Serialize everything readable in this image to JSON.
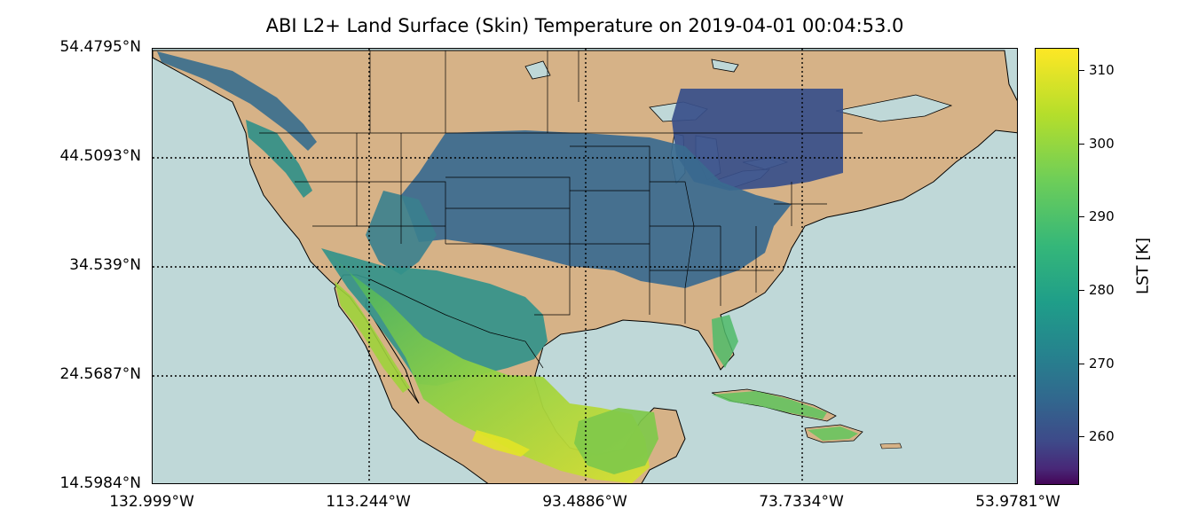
{
  "title": "ABI L2+ Land Surface (Skin) Temperature on 2019-04-01 00:04:53.0",
  "map": {
    "lat_labels": [
      "54.4795°N",
      "44.5093°N",
      "34.539°N",
      "24.5687°N",
      "14.5984°N"
    ],
    "lon_labels": [
      "132.999°W",
      "113.244°W",
      "93.4886°W",
      "73.7334°W",
      "53.9781°W"
    ],
    "colors": {
      "ocean": "#bfd8d8",
      "land": "#d6b287",
      "border": "#000000"
    }
  },
  "colorbar": {
    "label": "LST [K]",
    "ticks": [
      "310",
      "300",
      "290",
      "280",
      "270",
      "260"
    ],
    "colormap": "viridis"
  }
}
